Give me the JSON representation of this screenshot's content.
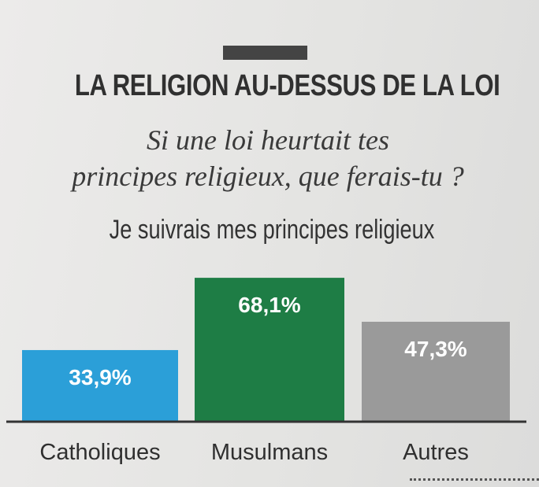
{
  "header": {
    "title": "LA RELIGION AU-DESSUS DE LA LOI",
    "question_line1": "Si une loi heurtait tes",
    "question_line2": "principes religieux, que ferais-tu ?",
    "answer": "Je suivrais mes principes religieux"
  },
  "colors": {
    "catholiques": "#2b9fd8",
    "musulmans": "#1e7d45",
    "autres": "#9a9a9a"
  },
  "chart_data": {
    "type": "bar",
    "title": "LA RELIGION AU-DESSUS DE LA LOI",
    "categories": [
      "Catholiques",
      "Musulmans",
      "Autres"
    ],
    "values": [
      33.9,
      68.1,
      47.3
    ],
    "value_labels": [
      "33,9%",
      "68,1%",
      "47,3%"
    ],
    "unit": "%",
    "ylim": [
      0,
      70
    ],
    "grid": false,
    "legend": "none"
  }
}
